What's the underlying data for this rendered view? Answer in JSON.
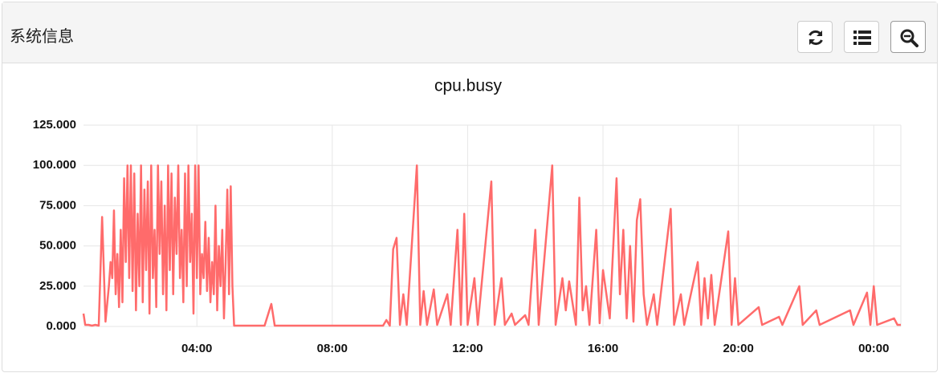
{
  "panel": {
    "title": "系统信息"
  },
  "chart_data": {
    "type": "line",
    "title": "cpu.busy",
    "color": "#ff6b6b",
    "grid": true,
    "x": [
      0.65,
      0.7,
      0.8,
      0.9,
      1.0,
      1.1,
      1.2,
      1.3,
      1.4,
      1.45,
      1.5,
      1.55,
      1.6,
      1.65,
      1.7,
      1.75,
      1.8,
      1.85,
      1.9,
      1.95,
      2.0,
      2.05,
      2.1,
      2.15,
      2.2,
      2.25,
      2.3,
      2.35,
      2.4,
      2.45,
      2.5,
      2.55,
      2.6,
      2.65,
      2.7,
      2.75,
      2.8,
      2.85,
      2.9,
      2.95,
      3.0,
      3.05,
      3.1,
      3.15,
      3.2,
      3.25,
      3.3,
      3.35,
      3.4,
      3.45,
      3.5,
      3.55,
      3.6,
      3.65,
      3.7,
      3.75,
      3.8,
      3.85,
      3.9,
      3.95,
      4.0,
      4.05,
      4.1,
      4.15,
      4.2,
      4.25,
      4.3,
      4.35,
      4.4,
      4.45,
      4.5,
      4.55,
      4.6,
      4.65,
      4.7,
      4.75,
      4.8,
      4.85,
      4.9,
      4.95,
      5.0,
      5.05,
      5.1,
      6.0,
      6.2,
      6.3,
      8.0,
      9.5,
      9.6,
      9.7,
      9.8,
      9.9,
      10.0,
      10.1,
      10.2,
      10.5,
      10.6,
      10.7,
      10.8,
      11.0,
      11.1,
      11.4,
      11.5,
      11.7,
      11.8,
      11.9,
      12.0,
      12.2,
      12.3,
      12.7,
      12.8,
      13.0,
      13.1,
      13.3,
      13.4,
      13.7,
      13.8,
      14.0,
      14.1,
      14.5,
      14.6,
      14.8,
      14.9,
      15.0,
      15.2,
      15.3,
      15.4,
      15.5,
      15.6,
      15.8,
      15.9,
      16.0,
      16.1,
      16.2,
      16.4,
      16.5,
      16.6,
      16.7,
      16.8,
      16.9,
      17.0,
      17.1,
      17.2,
      17.3,
      17.5,
      17.6,
      18.0,
      18.1,
      18.3,
      18.4,
      18.8,
      18.9,
      19.0,
      19.1,
      19.2,
      19.3,
      19.7,
      19.8,
      19.9,
      20.0,
      20.6,
      20.7,
      21.2,
      21.3,
      21.8,
      21.9,
      22.3,
      22.4,
      23.3,
      23.4,
      23.8,
      23.9,
      24.0,
      24.1,
      24.6,
      24.7,
      24.8
    ],
    "values": [
      8,
      1,
      1,
      0.5,
      1,
      0.5,
      68,
      3,
      25,
      40,
      30,
      72,
      20,
      45,
      12,
      60,
      15,
      92,
      40,
      100,
      30,
      100,
      22,
      95,
      10,
      70,
      25,
      100,
      15,
      85,
      35,
      90,
      8,
      100,
      30,
      60,
      12,
      100,
      45,
      90,
      20,
      75,
      10,
      100,
      35,
      95,
      20,
      80,
      45,
      100,
      30,
      60,
      15,
      95,
      25,
      100,
      40,
      70,
      8,
      100,
      30,
      100,
      20,
      45,
      30,
      65,
      22,
      55,
      15,
      40,
      20,
      75,
      10,
      50,
      25,
      60,
      5,
      40,
      85,
      20,
      87,
      25,
      0.5,
      0.5,
      14,
      0.5,
      0.5,
      0.5,
      4,
      0.5,
      48,
      55,
      1,
      20,
      1,
      100,
      1,
      22,
      1,
      23,
      1,
      20,
      1,
      60,
      1,
      70,
      1,
      30,
      1,
      90,
      1,
      30,
      1,
      8,
      1,
      7,
      1,
      60,
      1,
      100,
      1,
      30,
      10,
      28,
      1,
      80,
      10,
      25,
      1,
      60,
      2,
      35,
      20,
      5,
      92,
      20,
      60,
      5,
      50,
      3,
      66,
      79,
      20,
      1,
      20,
      1,
      73,
      1,
      20,
      1,
      40,
      1,
      30,
      5,
      32,
      1,
      59,
      1,
      30,
      1,
      12,
      1,
      6,
      1,
      25,
      1,
      10,
      1,
      10,
      1,
      21,
      1,
      25,
      1,
      5,
      1,
      1
    ],
    "xlim": [
      0.65,
      24.8
    ],
    "xticks": [
      {
        "value": 4,
        "label": "04:00"
      },
      {
        "value": 8,
        "label": "08:00"
      },
      {
        "value": 12,
        "label": "12:00"
      },
      {
        "value": 16,
        "label": "16:00"
      },
      {
        "value": 20,
        "label": "20:00"
      },
      {
        "value": 24,
        "label": "00:00"
      }
    ],
    "ylim": [
      0,
      125
    ],
    "yticks": [
      {
        "value": 0,
        "label": "0.000"
      },
      {
        "value": 25,
        "label": "25.000"
      },
      {
        "value": 50,
        "label": "50.000"
      },
      {
        "value": 75,
        "label": "75.000"
      },
      {
        "value": 100,
        "label": "100.000"
      },
      {
        "value": 125,
        "label": "125.000"
      }
    ]
  }
}
